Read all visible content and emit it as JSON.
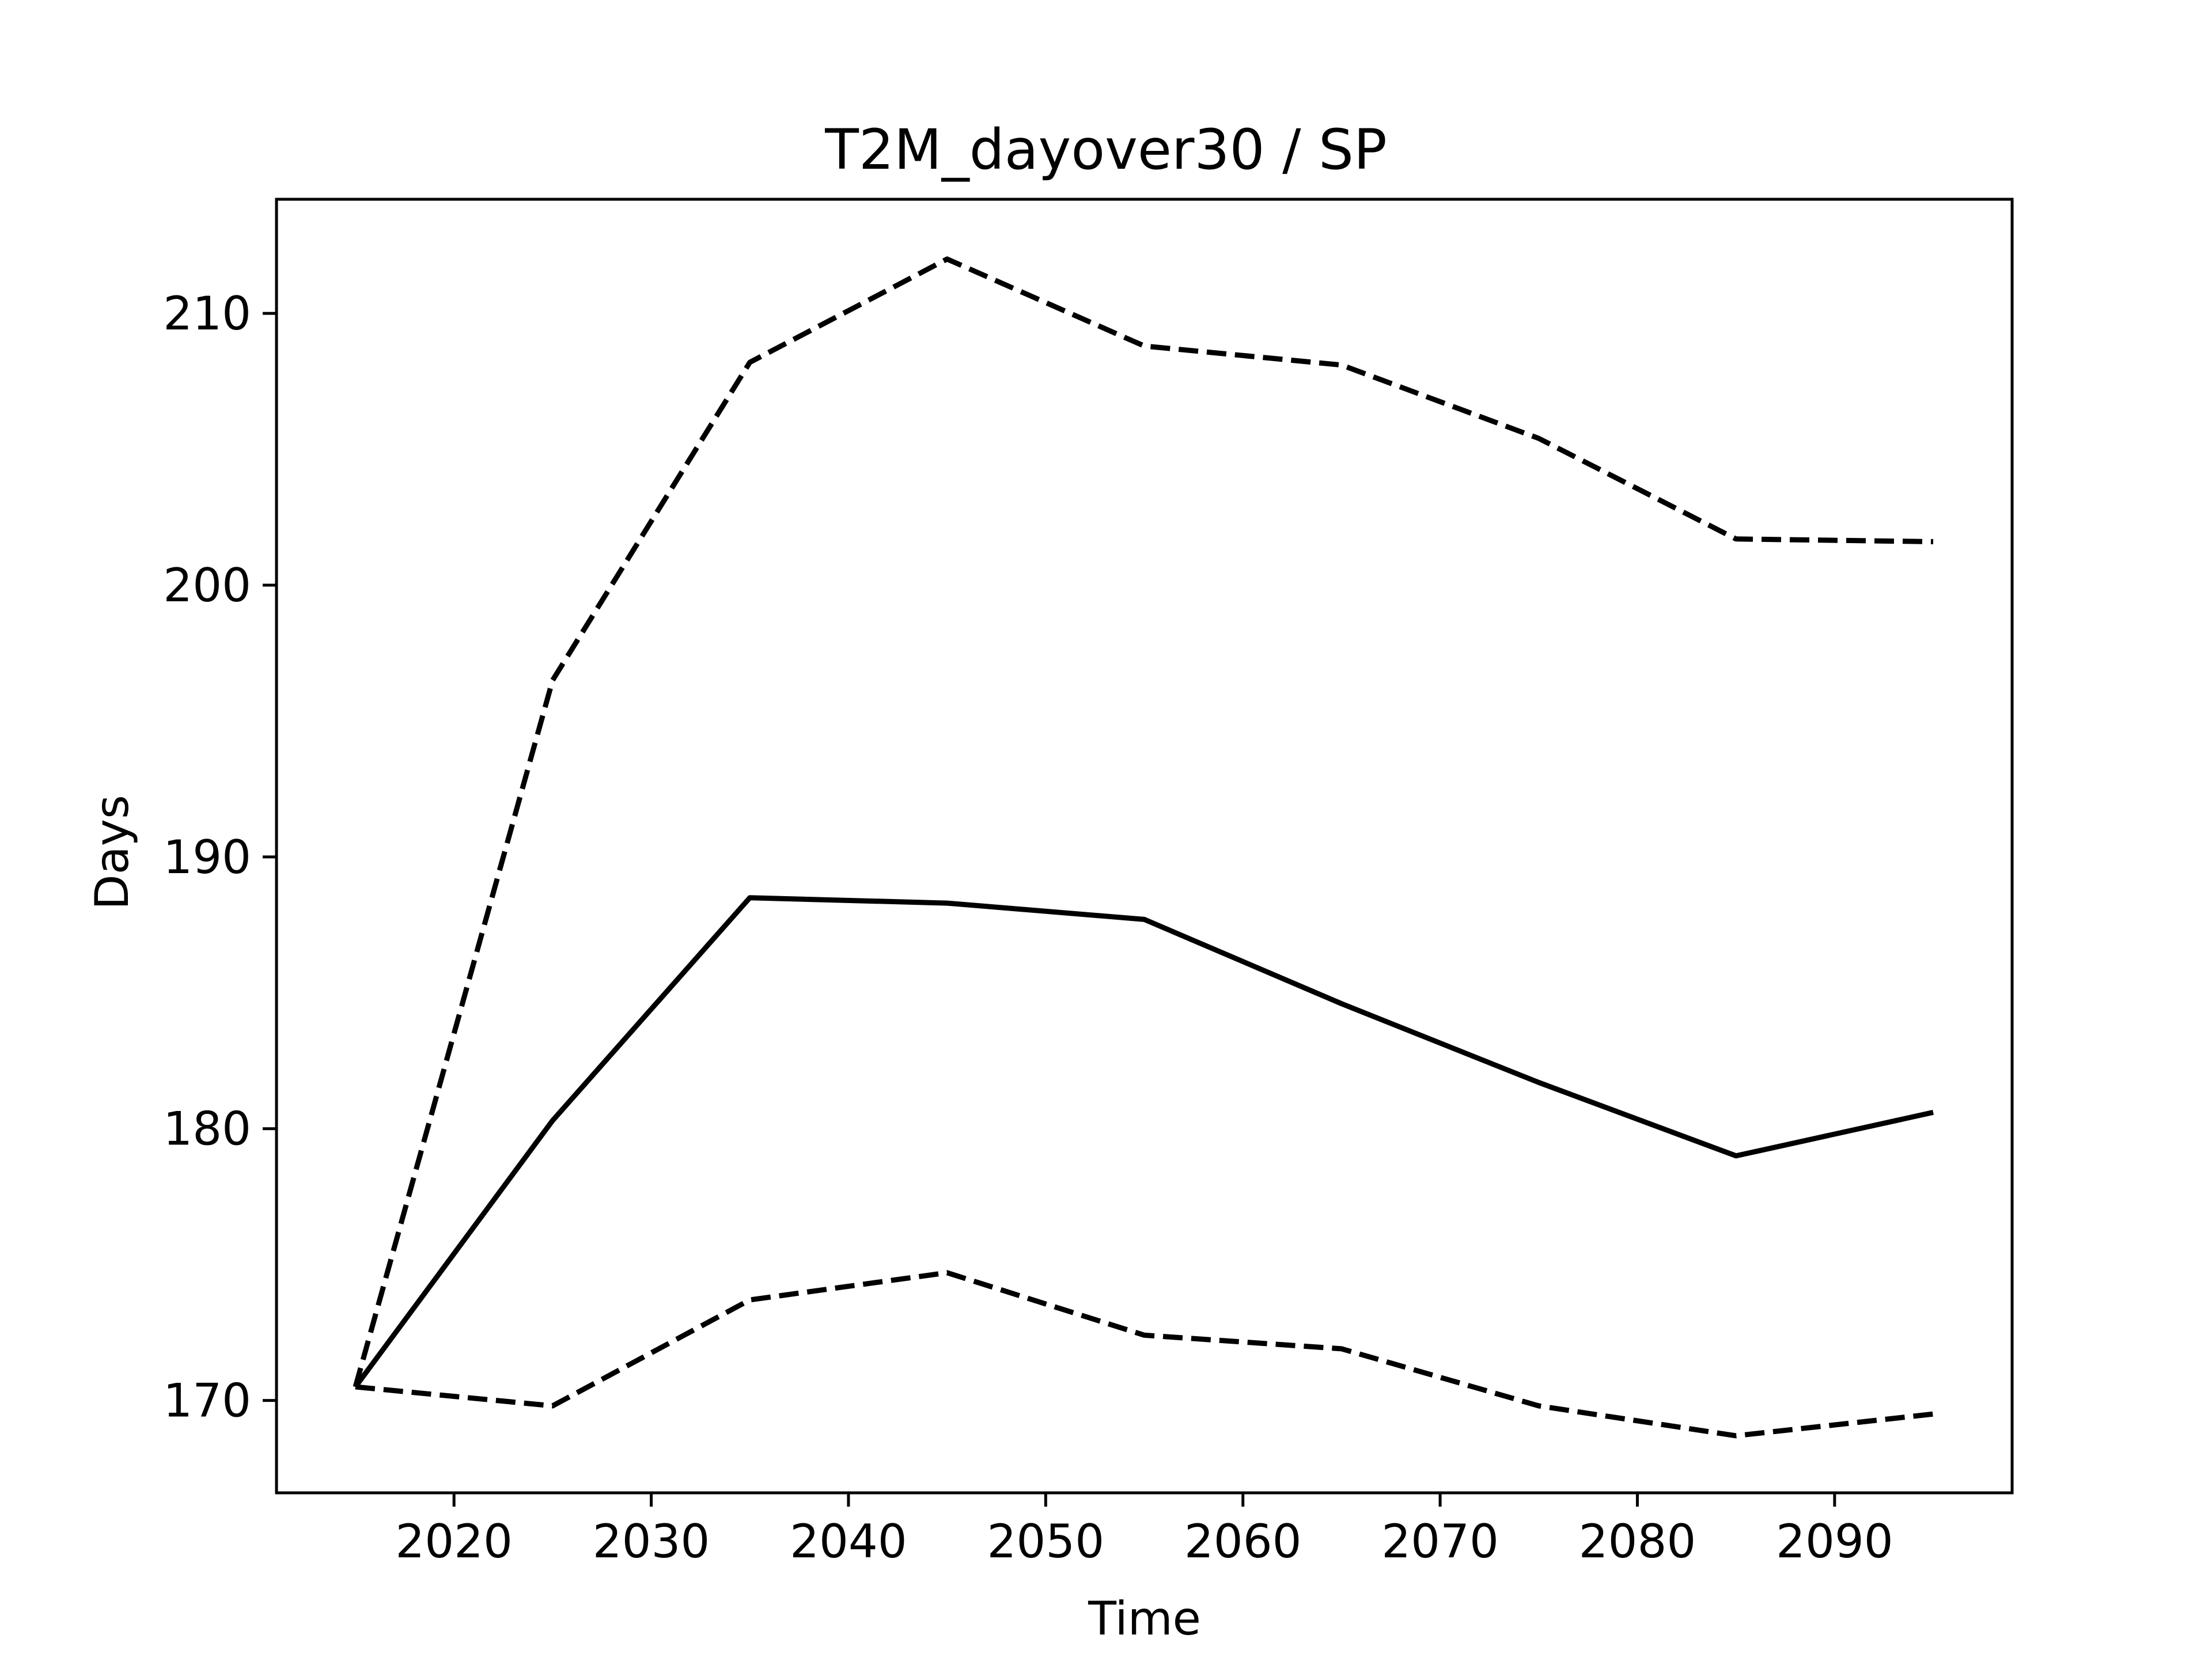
{
  "chart_data": {
    "type": "line",
    "title": "T2M_dayover30 / SP",
    "xlabel": "Time",
    "ylabel": "Days",
    "xlim": [
      2011,
      2099
    ],
    "ylim": [
      166.6,
      214.2
    ],
    "xticks": [
      2020,
      2030,
      2040,
      2050,
      2060,
      2070,
      2080,
      2090
    ],
    "yticks": [
      170,
      180,
      190,
      200,
      210
    ],
    "grid": false,
    "x": [
      2015,
      2025,
      2035,
      2045,
      2055,
      2065,
      2075,
      2085,
      2095
    ],
    "series": [
      {
        "style": "solid",
        "color": "#000000",
        "values": [
          170.5,
          180.3,
          188.5,
          188.3,
          187.7,
          184.6,
          181.7,
          179.0,
          180.6
        ]
      },
      {
        "style": "dashed",
        "color": "#000000",
        "values": [
          170.5,
          196.5,
          208.2,
          212.0,
          208.8,
          208.1,
          205.4,
          201.7,
          201.6
        ]
      },
      {
        "style": "dashed",
        "color": "#000000",
        "values": [
          170.5,
          169.8,
          173.7,
          174.7,
          172.4,
          171.9,
          169.8,
          168.7,
          169.5
        ]
      }
    ]
  }
}
